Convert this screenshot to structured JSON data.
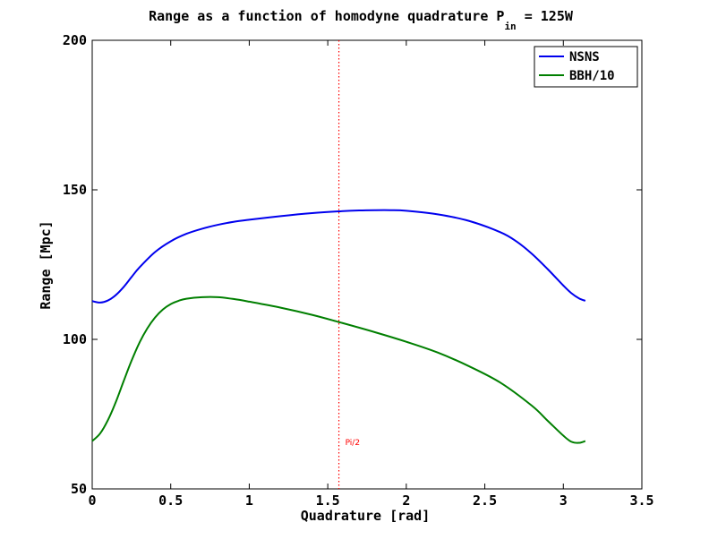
{
  "chart_data": {
    "type": "line",
    "title": "Range as a function of homodyne quadrature P",
    "title_subscript": "in",
    "title_suffix": " = 125W",
    "xlabel": "Quadrature [rad]",
    "ylabel": "Range [Mpc]",
    "xlim": [
      0,
      3.5
    ],
    "ylim": [
      50,
      200
    ],
    "xticks": [
      0,
      0.5,
      1,
      1.5,
      2,
      2.5,
      3,
      3.5
    ],
    "xtick_labels": [
      "0",
      "0.5",
      "1",
      "1.5",
      "2",
      "2.5",
      "3",
      "3.5"
    ],
    "yticks": [
      50,
      100,
      150,
      200
    ],
    "ytick_labels": [
      "50",
      "100",
      "150",
      "200"
    ],
    "grid": false,
    "legend_position": "top-right",
    "series": [
      {
        "name": "NSNS",
        "color": "#0000ee",
        "x": [
          0.0,
          0.05,
          0.1,
          0.15,
          0.2,
          0.25,
          0.3,
          0.4,
          0.5,
          0.6,
          0.7,
          0.8,
          0.9,
          1.0,
          1.2,
          1.4,
          1.57,
          1.7,
          1.8,
          1.9,
          2.0,
          2.2,
          2.4,
          2.6,
          2.7,
          2.8,
          2.9,
          3.0,
          3.05,
          3.1,
          3.14
        ],
        "y": [
          112.8,
          112.3,
          113.0,
          114.8,
          117.5,
          120.8,
          124.0,
          129.2,
          132.8,
          135.3,
          137.0,
          138.3,
          139.3,
          140.0,
          141.2,
          142.2,
          142.8,
          143.1,
          143.2,
          143.2,
          143.0,
          141.8,
          139.6,
          135.8,
          132.8,
          128.6,
          123.5,
          118.0,
          115.5,
          113.7,
          112.9
        ]
      },
      {
        "name": "BBH/10",
        "color": "#007f00",
        "x": [
          0.0,
          0.05,
          0.1,
          0.15,
          0.2,
          0.25,
          0.3,
          0.35,
          0.4,
          0.45,
          0.5,
          0.55,
          0.6,
          0.7,
          0.8,
          0.9,
          1.0,
          1.2,
          1.4,
          1.57,
          1.8,
          2.0,
          2.2,
          2.4,
          2.6,
          2.8,
          2.9,
          3.0,
          3.05,
          3.1,
          3.14
        ],
        "y": [
          66.0,
          68.5,
          73.0,
          79.0,
          86.0,
          92.8,
          98.8,
          103.6,
          107.3,
          110.0,
          111.8,
          112.9,
          113.6,
          114.1,
          114.1,
          113.5,
          112.6,
          110.6,
          108.2,
          105.8,
          102.4,
          99.2,
          95.6,
          91.0,
          85.5,
          77.8,
          72.8,
          67.8,
          65.8,
          65.4,
          66.0
        ]
      }
    ],
    "annotations": [
      {
        "label": "Pi/2",
        "x": 1.5708,
        "color": "#ff0000",
        "style": "dotted vertical line"
      }
    ]
  }
}
